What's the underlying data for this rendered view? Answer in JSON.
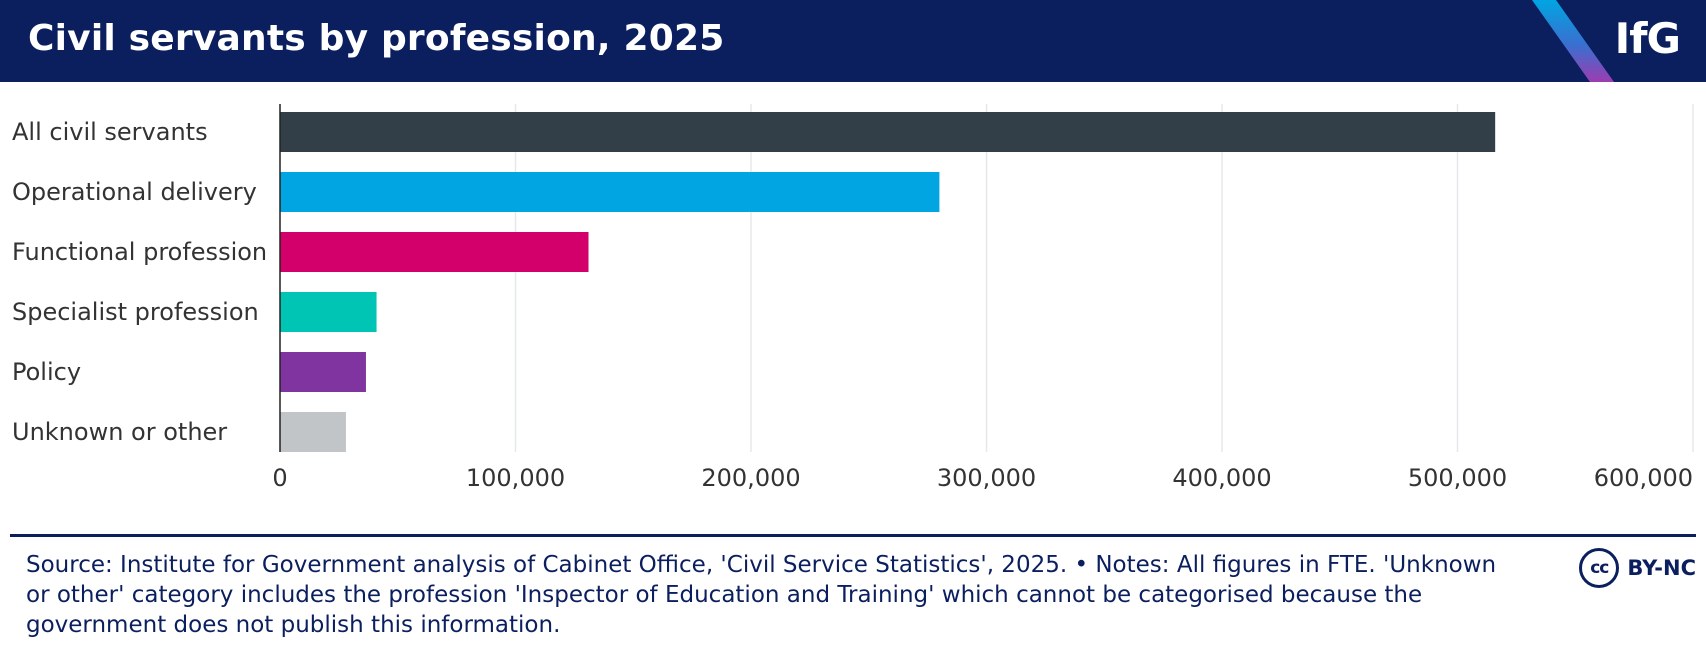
{
  "header": {
    "title": "Civil servants by profession, 2025",
    "logo": "IfG"
  },
  "chart_data": {
    "type": "bar",
    "orientation": "horizontal",
    "categories": [
      "All civil servants",
      "Operational delivery",
      "Functional profession",
      "Specialist profession",
      "Policy",
      "Unknown or other"
    ],
    "values": [
      516000,
      280000,
      131000,
      41000,
      36500,
      28000
    ],
    "colors": [
      "#333f48",
      "#00a5e1",
      "#d3006b",
      "#00c5b5",
      "#8034a0",
      "#c1c5c8"
    ],
    "xlim": [
      0,
      600000
    ],
    "xticks": [
      0,
      100000,
      200000,
      300000,
      400000,
      500000,
      600000
    ],
    "xtick_labels": [
      "0",
      "100,000",
      "200,000",
      "300,000",
      "400,000",
      "500,000",
      "600,000"
    ],
    "grid": true,
    "legend": "none"
  },
  "footer": {
    "source": "Source: Institute for Government analysis of Cabinet Office, 'Civil Service Statistics', 2025. • Notes: All figures in FTE. 'Unknown or other' category includes the profession 'Inspector of Education and Training' which cannot be categorised because the government does not publish this information.",
    "license_symbol": "cc",
    "license_label": "BY-NC"
  }
}
